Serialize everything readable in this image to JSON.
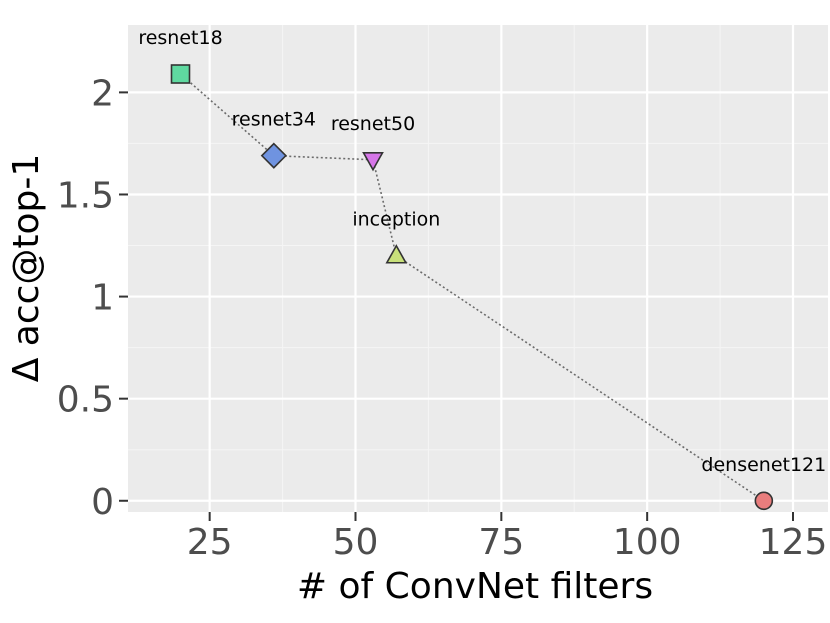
{
  "chart_data": {
    "type": "scatter",
    "xlabel": "# of ConvNet filters",
    "ylabel": "Δ acc@top-1",
    "xlim": [
      11,
      131
    ],
    "ylim": [
      -0.055,
      2.33
    ],
    "x_ticks": [
      25,
      50,
      75,
      100,
      125
    ],
    "x_tick_labels": [
      "25",
      "50",
      "75",
      "100",
      "125"
    ],
    "y_ticks": [
      0,
      0.5,
      1,
      1.5,
      2
    ],
    "y_tick_labels": [
      "0",
      "0.5",
      "1",
      "1.5",
      "2"
    ],
    "grid": true,
    "panel_color": "#ebebeb",
    "connector": "dotted",
    "points": [
      {
        "label": "resnet18",
        "x": 20,
        "y": 2.09,
        "shape": "square",
        "color": "#5fd9a0"
      },
      {
        "label": "resnet34",
        "x": 36,
        "y": 1.69,
        "shape": "diamond",
        "color": "#6f93e0"
      },
      {
        "label": "resnet50",
        "x": 53,
        "y": 1.67,
        "shape": "triangle-down",
        "color": "#d676e8"
      },
      {
        "label": "inception",
        "x": 57,
        "y": 1.2,
        "shape": "triangle-up",
        "color": "#c8e07a"
      },
      {
        "label": "densenet121",
        "x": 120,
        "y": 0,
        "shape": "circle",
        "color": "#e87d7d"
      }
    ]
  }
}
